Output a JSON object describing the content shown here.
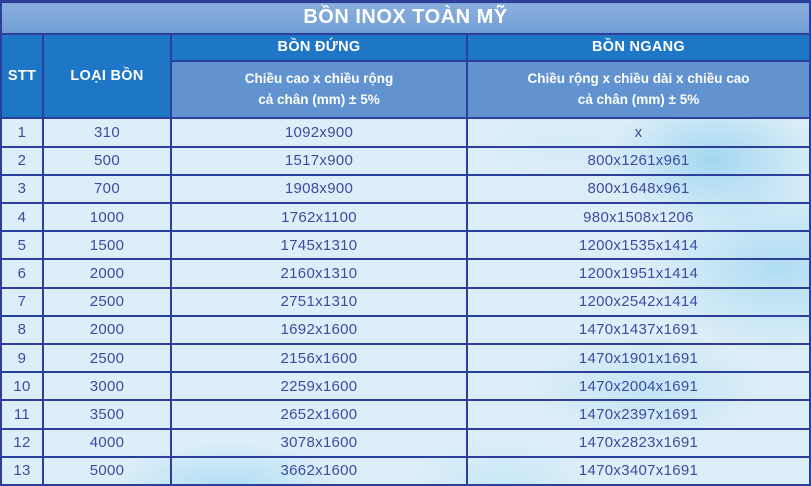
{
  "title": "BỒN INOX TOÀN MỸ",
  "header": {
    "stt": "STT",
    "loai_bon": "LOẠI BỒN",
    "bon_dung": "BỒN ĐỨNG",
    "bon_ngang": "BỒN NGANG",
    "bon_dung_sub_line1": "Chiều cao x chiều rộng",
    "bon_dung_sub_line2": "cả chân (mm) ± 5%",
    "bon_ngang_sub_line1": "Chiều rộng x chiều dài x chiều cao",
    "bon_ngang_sub_line2": "cả chân (mm) ± 5%"
  },
  "rows": [
    {
      "stt": "1",
      "loai_bon": "310",
      "bon_dung": "1092x900",
      "bon_ngang": "x"
    },
    {
      "stt": "2",
      "loai_bon": "500",
      "bon_dung": "1517x900",
      "bon_ngang": "800x1261x961"
    },
    {
      "stt": "3",
      "loai_bon": "700",
      "bon_dung": "1908x900",
      "bon_ngang": "800x1648x961"
    },
    {
      "stt": "4",
      "loai_bon": "1000",
      "bon_dung": "1762x1100",
      "bon_ngang": "980x1508x1206"
    },
    {
      "stt": "5",
      "loai_bon": "1500",
      "bon_dung": "1745x1310",
      "bon_ngang": "1200x1535x1414"
    },
    {
      "stt": "6",
      "loai_bon": "2000",
      "bon_dung": "2160x1310",
      "bon_ngang": "1200x1951x1414"
    },
    {
      "stt": "7",
      "loai_bon": "2500",
      "bon_dung": "2751x1310",
      "bon_ngang": "1200x2542x1414"
    },
    {
      "stt": "8",
      "loai_bon": "2000",
      "bon_dung": "1692x1600",
      "bon_ngang": "1470x1437x1691"
    },
    {
      "stt": "9",
      "loai_bon": "2500",
      "bon_dung": "2156x1600",
      "bon_ngang": "1470x1901x1691"
    },
    {
      "stt": "10",
      "loai_bon": "3000",
      "bon_dung": "2259x1600",
      "bon_ngang": "1470x2004x1691"
    },
    {
      "stt": "11",
      "loai_bon": "3500",
      "bon_dung": "2652x1600",
      "bon_ngang": "1470x2397x1691"
    },
    {
      "stt": "12",
      "loai_bon": "4000",
      "bon_dung": "3078x1600",
      "bon_ngang": "1470x2823x1691"
    },
    {
      "stt": "13",
      "loai_bon": "5000",
      "bon_dung": "3662x1600",
      "bon_ngang": "1470x3407x1691"
    }
  ],
  "colors": {
    "title-bg": "#7CA5D8",
    "header-dark": "#1E76C6",
    "header-medium": "#6093D0",
    "cell-bg": "#DCEEF8",
    "border": "#2B3F9B",
    "data-text": "#3E4BA3",
    "header-text": "#FFFFFF",
    "watercolor": "#9AD4F0"
  }
}
